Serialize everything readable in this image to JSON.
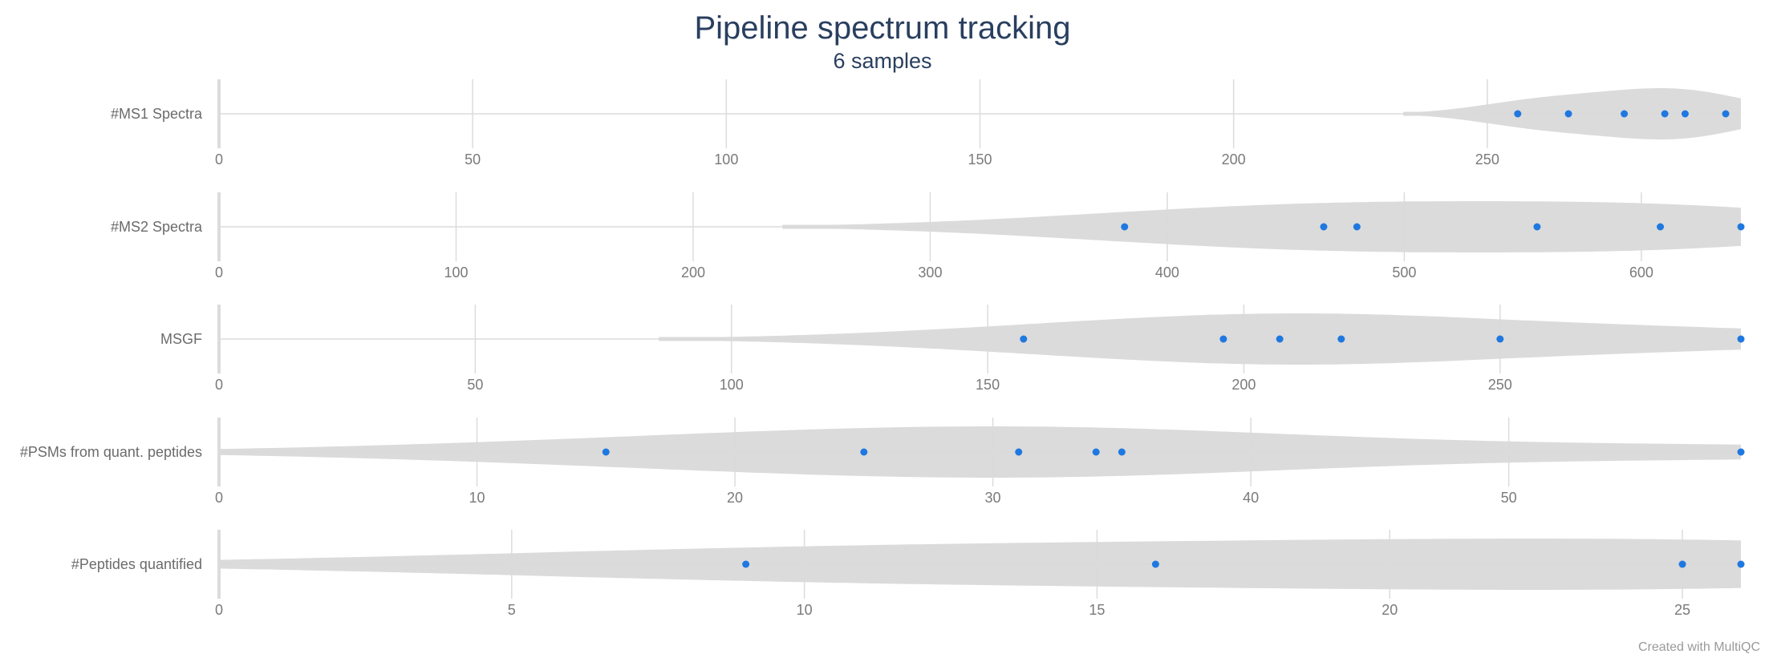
{
  "chart_data": {
    "type": "violin",
    "title": "Pipeline spectrum tracking",
    "subtitle": "6 samples",
    "credit": "Created with MultiQC",
    "colors": {
      "point": "#1f78e0",
      "violin": "#d9d9d9",
      "grid": "#dcdcdc",
      "title": "#2a3f5f"
    },
    "rows": [
      {
        "label": "#MS1 Spectra",
        "xlim": [
          0,
          300
        ],
        "ticks": [
          0,
          50,
          100,
          150,
          200,
          250
        ],
        "values": [
          256,
          266,
          277,
          285,
          289,
          297
        ]
      },
      {
        "label": "#MS2 Spectra",
        "xlim": [
          0,
          642
        ],
        "ticks": [
          0,
          100,
          200,
          300,
          400,
          500,
          600
        ],
        "values": [
          382,
          466,
          480,
          556,
          608,
          642
        ]
      },
      {
        "label": "MSGF",
        "xlim": [
          0,
          297
        ],
        "ticks": [
          0,
          50,
          100,
          150,
          200,
          250
        ],
        "values": [
          157,
          196,
          207,
          219,
          250,
          297
        ]
      },
      {
        "label": "#PSMs from quant. peptides",
        "xlim": [
          0,
          59
        ],
        "ticks": [
          0,
          10,
          20,
          30,
          40,
          50
        ],
        "values": [
          15,
          25,
          31,
          34,
          35,
          59
        ]
      },
      {
        "label": "#Peptides quantified",
        "xlim": [
          0,
          26
        ],
        "ticks": [
          0,
          5,
          10,
          15,
          20,
          25
        ],
        "values": [
          9,
          16,
          25,
          26
        ]
      }
    ]
  }
}
